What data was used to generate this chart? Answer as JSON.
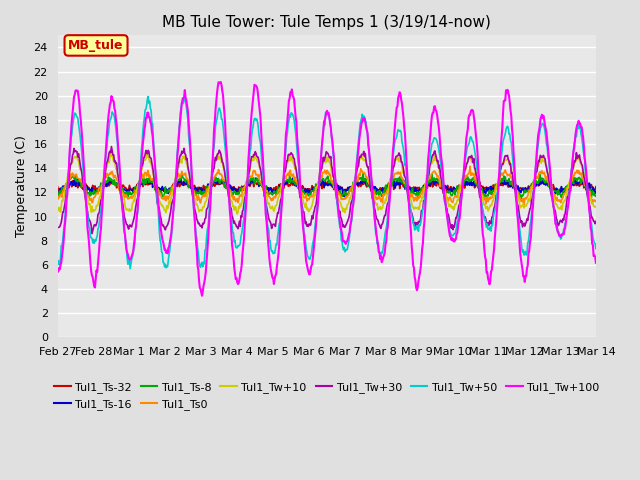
{
  "title": "MB Tule Tower: Tule Temps 1 (3/19/14-now)",
  "ylabel": "Temperature (C)",
  "ylim": [
    0,
    25
  ],
  "yticks": [
    0,
    2,
    4,
    6,
    8,
    10,
    12,
    14,
    16,
    18,
    20,
    22,
    24
  ],
  "background_color": "#e0e0e0",
  "plot_bg_color": "#e8e8e8",
  "grid_color": "#ffffff",
  "x_labels": [
    "Feb 27",
    "Feb 28",
    "Mar 1",
    "Mar 2",
    "Mar 3",
    "Mar 4",
    "Mar 5",
    "Mar 6",
    "Mar 7",
    "Mar 8",
    "Mar 9",
    "Mar 10",
    "Mar 11",
    "Mar 12",
    "Mar 13",
    "Mar 14"
  ],
  "series": [
    {
      "label": "Tul1_Ts-32",
      "color": "#cc0000",
      "lw": 1.2
    },
    {
      "label": "Tul1_Ts-16",
      "color": "#0000cc",
      "lw": 1.2
    },
    {
      "label": "Tul1_Ts-8",
      "color": "#00aa00",
      "lw": 1.2
    },
    {
      "label": "Tul1_Ts0",
      "color": "#ff8800",
      "lw": 1.2
    },
    {
      "label": "Tul1_Tw+10",
      "color": "#cccc00",
      "lw": 1.2
    },
    {
      "label": "Tul1_Tw+30",
      "color": "#aa00aa",
      "lw": 1.2
    },
    {
      "label": "Tul1_Tw+50",
      "color": "#00cccc",
      "lw": 1.2
    },
    {
      "label": "Tul1_Tw+100",
      "color": "#ff00ff",
      "lw": 1.5
    }
  ],
  "legend_box": {
    "label": "MB_tule",
    "facecolor": "#ffff99",
    "edgecolor": "#cc0000",
    "text_color": "#cc0000",
    "fontsize": 9
  }
}
